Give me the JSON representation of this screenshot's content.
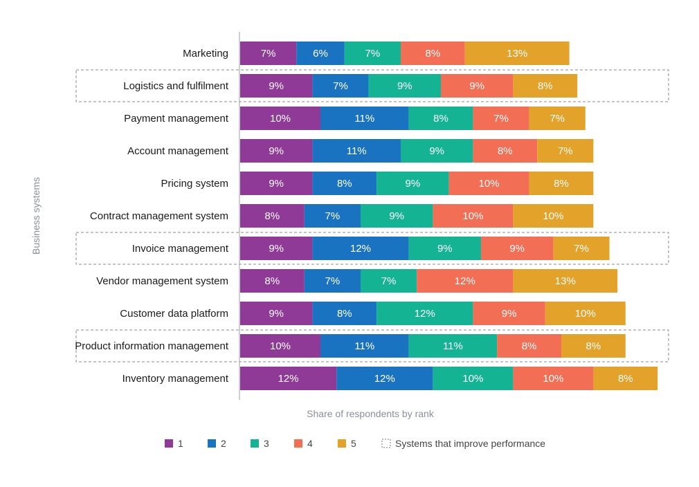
{
  "chart_data": {
    "type": "bar",
    "orientation": "horizontal",
    "stacked": true,
    "ylabel": "Business systems",
    "xlabel": "Share of respondents by rank",
    "categories": [
      "Marketing",
      "Logistics and fulfilment",
      "Payment management",
      "Account management",
      "Pricing system",
      "Contract management system",
      "Invoice management",
      "Vendor management system",
      "Customer data platform",
      "Product information management",
      "Inventory management"
    ],
    "highlighted": [
      "Logistics and fulfilment",
      "Invoice management",
      "Product information management"
    ],
    "series": [
      {
        "name": "1",
        "color": "#8e3a96",
        "values": [
          7,
          9,
          10,
          9,
          9,
          8,
          9,
          8,
          9,
          10,
          12
        ]
      },
      {
        "name": "2",
        "color": "#1a73c0",
        "values": [
          6,
          7,
          11,
          11,
          8,
          7,
          12,
          7,
          8,
          11,
          12
        ]
      },
      {
        "name": "3",
        "color": "#14b394",
        "values": [
          7,
          9,
          8,
          9,
          9,
          9,
          9,
          7,
          12,
          11,
          10
        ]
      },
      {
        "name": "4",
        "color": "#f26e55",
        "values": [
          8,
          9,
          7,
          8,
          10,
          10,
          9,
          12,
          9,
          8,
          10
        ]
      },
      {
        "name": "5",
        "color": "#e3a22a",
        "values": [
          13,
          8,
          7,
          7,
          8,
          10,
          7,
          13,
          10,
          8,
          8
        ]
      }
    ],
    "value_suffix": "%",
    "legend": {
      "position": "bottom",
      "highlight_label": "Systems that improve performance"
    },
    "grid": false
  }
}
